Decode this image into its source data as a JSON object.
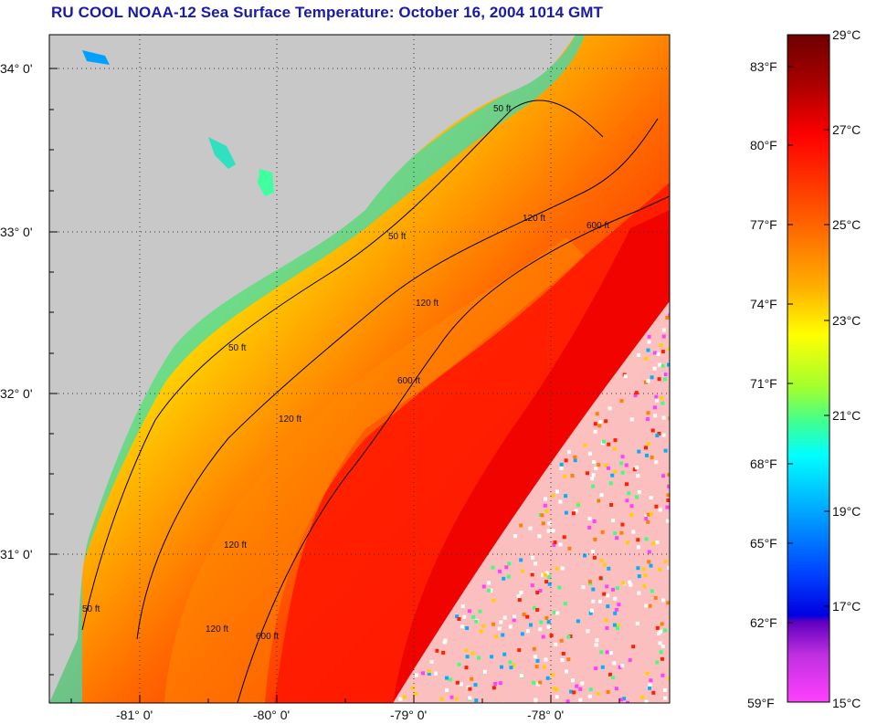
{
  "title": "RU COOL  NOAA-12  Sea Surface Temperature:  October 16, 2004 1014 GMT",
  "map": {
    "lat_labels": [
      "34° 0'",
      "33° 0'",
      "32° 0'",
      "31° 0'"
    ],
    "lon_labels": [
      "-81° 0'",
      "-80° 0'",
      "-79° 0'",
      "-78° 0'"
    ],
    "contour_labels": [
      "50 ft",
      "50 ft",
      "50 ft",
      "50 ft",
      "120 ft",
      "120 ft",
      "120 ft",
      "120 ft",
      "120 ft",
      "600 ft",
      "600 ft",
      "600 ft"
    ],
    "colors": {
      "land": "#c8c8c8",
      "frame": "#000000",
      "grid": "#333333"
    }
  },
  "colorbar": {
    "fahrenheit_labels": [
      "83°F",
      "80°F",
      "77°F",
      "74°F",
      "71°F",
      "68°F",
      "65°F",
      "62°F",
      "59°F"
    ],
    "celsius_labels": [
      "29°C",
      "27°C",
      "25°C",
      "23°C",
      "21°C",
      "19°C",
      "17°C",
      "15°C"
    ],
    "colors_top_to_bottom": [
      "#6e0000",
      "#c80000",
      "#ff1a00",
      "#ff5a00",
      "#ff9a00",
      "#ffd000",
      "#ffff00",
      "#c8ff20",
      "#40ff80",
      "#00ffff",
      "#00b0ff",
      "#0050ff",
      "#0000ff",
      "#8000c0",
      "#ff40ff"
    ]
  }
}
